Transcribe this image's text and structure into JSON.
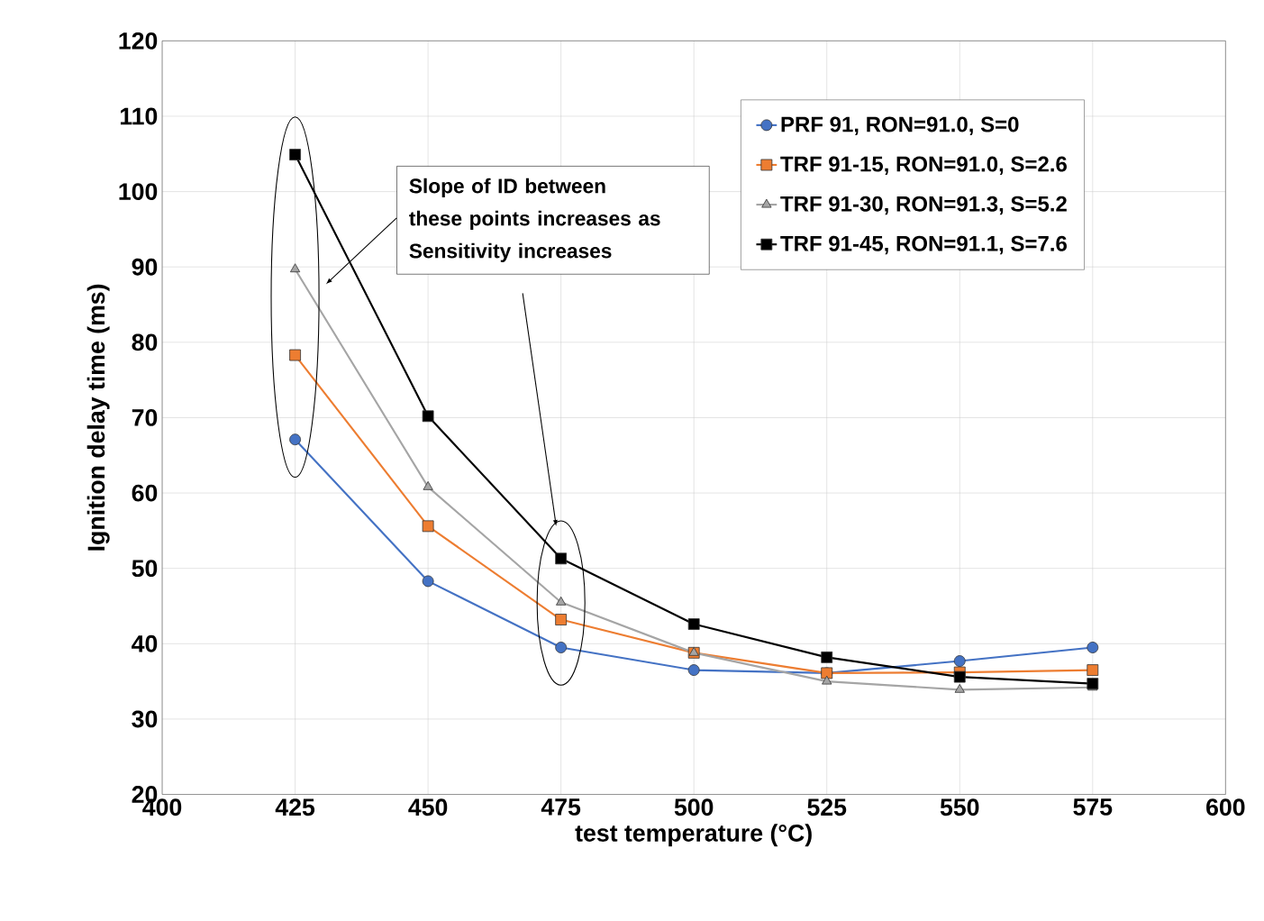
{
  "chart_data": {
    "type": "line",
    "xlabel": "test temperature (°C)",
    "ylabel": "Ignition delay time (ms)",
    "x": [
      425,
      450,
      475,
      500,
      525,
      550,
      575
    ],
    "xlim": [
      400,
      600
    ],
    "xticks": [
      400,
      425,
      450,
      475,
      500,
      525,
      550,
      575,
      600
    ],
    "ylim": [
      20,
      120
    ],
    "yticks": [
      20,
      30,
      40,
      50,
      60,
      70,
      80,
      90,
      100,
      110,
      120
    ],
    "grid": true,
    "legend": "top right",
    "annotations": [
      "Slope of ID between these points increases as Sensitivity increases"
    ],
    "series": [
      {
        "name": "PRF 91, RON=91.0, S=0",
        "color": "#4472c4",
        "marker": "circle",
        "values": [
          67.1,
          48.3,
          39.5,
          36.5,
          36.1,
          37.7,
          39.5
        ]
      },
      {
        "name": "TRF 91-15, RON=91.0, S=2.6",
        "color": "#ed7d31",
        "marker": "square",
        "values": [
          78.3,
          55.6,
          43.2,
          38.8,
          36.1,
          36.2,
          36.5
        ]
      },
      {
        "name": "TRF 91-30, RON=91.3, S=5.2",
        "color": "#a5a5a5",
        "marker": "triangle",
        "values": [
          89.7,
          60.8,
          45.5,
          38.8,
          35.0,
          33.9,
          34.2
        ]
      },
      {
        "name": "TRF 91-45, RON=91.1, S=7.6",
        "color": "#000000",
        "marker": "square",
        "values": [
          104.9,
          70.2,
          51.3,
          42.6,
          38.2,
          35.6,
          34.7
        ]
      }
    ]
  }
}
